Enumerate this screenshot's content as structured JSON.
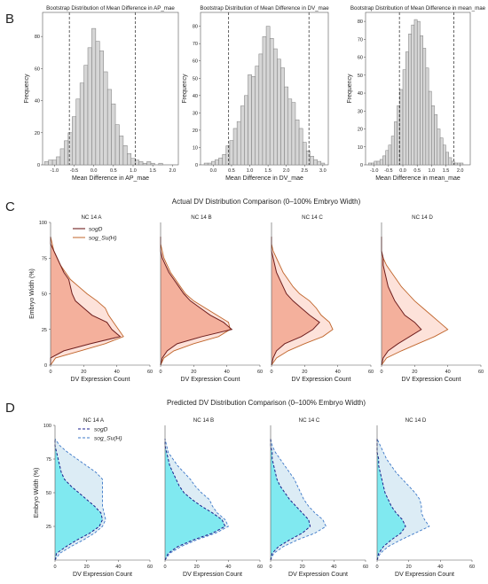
{
  "figure": {
    "panel_b": "B",
    "panel_c": "C",
    "panel_d": "D",
    "section_c_title": "Actual DV Distribution Comparison (0–100% Embryo Width)",
    "section_d_title": "Predicted DV Distribution Comparison (0–100% Embryo Width)"
  },
  "colors": {
    "hist_fill": "#d6d6d6",
    "hist_edge": "#7a7a7a",
    "actual_sogD_line": "#6e1e1e",
    "actual_sogSu_line": "#c0652b",
    "actual_sogD_fill": "#f4b09c",
    "actual_sogSu_fill": "#fde2da",
    "pred_sogD_line": "#1a1f8c",
    "pred_sogSu_line": "#3c78c8",
    "pred_sogD_fill": "#80e9f0",
    "pred_sogSu_fill": "#dcecf5"
  },
  "chart_data": [
    {
      "type": "bar",
      "title": "Bootstrap Distribution of Mean Difference in AP_mae",
      "xlabel": "Mean Difference in AP_mae",
      "ylabel": "Frequency",
      "xlim": [
        -1.3,
        2.15
      ],
      "ylim": [
        0,
        95
      ],
      "xticks": [
        -1.0,
        -0.5,
        0.0,
        0.5,
        1.0,
        1.5,
        2.0
      ],
      "xtick_labels": [
        "-1.0",
        "-0.5",
        "0.0",
        "0.5",
        "1.0",
        "1.5",
        "2.0"
      ],
      "yticks": [
        0,
        20,
        40,
        60,
        80
      ],
      "bin_start": -1.25,
      "bin_width": 0.1,
      "values": [
        2,
        3,
        3,
        5,
        10,
        15,
        20,
        30,
        41,
        51,
        62,
        73,
        85,
        77,
        71,
        58,
        47,
        38,
        25,
        18,
        12,
        7,
        4,
        3,
        2,
        1,
        2,
        1,
        0,
        1
      ],
      "ci": [
        -0.62,
        1.06
      ]
    },
    {
      "type": "bar",
      "title": "Bootstrap Distribution of Mean Difference in DV_mae",
      "xlabel": "Mean Difference in DV_mae",
      "ylabel": "Frequency",
      "xlim": [
        -0.35,
        3.15
      ],
      "ylim": [
        0,
        88
      ],
      "xticks": [
        0.0,
        0.5,
        1.0,
        1.5,
        2.0,
        2.5,
        3.0
      ],
      "xtick_labels": [
        "0.0",
        "0.5",
        "1.0",
        "1.5",
        "2.0",
        "2.5",
        "3.0"
      ],
      "yticks": [
        0,
        10,
        20,
        30,
        40,
        50,
        60,
        70,
        80
      ],
      "bin_start": -0.25,
      "bin_width": 0.1,
      "values": [
        1,
        1,
        2,
        3,
        4,
        6,
        11,
        14,
        21,
        25,
        34,
        40,
        52,
        51,
        57,
        64,
        74,
        80,
        73,
        67,
        61,
        56,
        45,
        38,
        36,
        26,
        21,
        13,
        8,
        5,
        3,
        2,
        1
      ],
      "ci": [
        0.42,
        2.62
      ]
    },
    {
      "type": "bar",
      "title": "Bootstrap Distribution of Mean Difference in mean_mae",
      "xlabel": "Mean Difference in mean_mae",
      "ylabel": "Frequency",
      "xlim": [
        -1.3,
        2.35
      ],
      "ylim": [
        0,
        85
      ],
      "xticks": [
        -1.0,
        -0.5,
        0.0,
        0.5,
        1.0,
        1.5,
        2.0
      ],
      "xtick_labels": [
        "-1.0",
        "-0.5",
        "0.0",
        "0.5",
        "1.0",
        "1.5",
        "2.0"
      ],
      "yticks": [
        0,
        10,
        20,
        30,
        40,
        50,
        60,
        70,
        80
      ],
      "bin_start": -1.2,
      "bin_width": 0.1,
      "values": [
        1,
        1,
        2,
        2,
        3,
        5,
        8,
        11,
        16,
        24,
        33,
        42,
        53,
        63,
        73,
        78,
        81,
        80,
        72,
        65,
        54,
        41,
        33,
        28,
        20,
        15,
        11,
        7,
        4,
        2,
        1,
        1,
        1,
        0,
        0
      ],
      "ci": [
        -0.12,
        1.78
      ]
    },
    {
      "type": "area",
      "group": "actual",
      "panels": [
        "NC 14 A",
        "NC 14 B",
        "NC 14 C",
        "NC 14 D"
      ],
      "xlabel": "DV Expression Count",
      "ylabel": "Embryo Width (%)",
      "xlim": [
        0,
        60
      ],
      "ylim": [
        0,
        100
      ],
      "xticks": [
        0,
        20,
        40,
        60
      ],
      "yticks": [
        0,
        25,
        50,
        75,
        100
      ],
      "legend": [
        "sogD",
        "sog_Su(H)"
      ],
      "y": [
        0,
        5,
        10,
        15,
        20,
        25,
        30,
        35,
        40,
        45,
        50,
        55,
        60,
        65,
        70,
        75,
        80,
        85,
        90
      ],
      "series": [
        {
          "name": "sogD",
          "panel": "NC 14 A",
          "values": [
            0,
            0,
            8,
            24,
            42,
            37,
            34,
            25,
            20,
            15,
            13,
            12,
            11,
            8,
            6,
            4,
            2,
            0,
            0
          ]
        },
        {
          "name": "sog_Su(H)",
          "panel": "NC 14 A",
          "values": [
            0,
            3,
            18,
            33,
            44,
            41,
            38,
            35,
            33,
            28,
            22,
            17,
            12,
            9,
            6,
            4,
            2,
            1,
            0
          ]
        },
        {
          "name": "sogD",
          "panel": "NC 14 B",
          "values": [
            0,
            1,
            4,
            10,
            25,
            43,
            38,
            30,
            24,
            18,
            14,
            11,
            8,
            5,
            3,
            1,
            0,
            0,
            0
          ]
        },
        {
          "name": "sog_Su(H)",
          "panel": "NC 14 B",
          "values": [
            0,
            2,
            8,
            20,
            35,
            42,
            41,
            34,
            27,
            20,
            15,
            12,
            9,
            6,
            4,
            2,
            1,
            0,
            0
          ]
        },
        {
          "name": "sogD",
          "panel": "NC 14 C",
          "values": [
            0,
            1,
            3,
            8,
            18,
            25,
            29,
            23,
            18,
            13,
            9,
            7,
            5,
            3,
            2,
            1,
            0,
            0,
            0
          ]
        },
        {
          "name": "sog_Su(H)",
          "panel": "NC 14 C",
          "values": [
            0,
            3,
            10,
            20,
            31,
            37,
            35,
            30,
            27,
            23,
            17,
            13,
            10,
            7,
            5,
            3,
            1,
            0,
            0
          ]
        },
        {
          "name": "sogD",
          "panel": "NC 14 D",
          "values": [
            0,
            1,
            4,
            10,
            17,
            24,
            20,
            14,
            11,
            8,
            6,
            4,
            3,
            2,
            1,
            1,
            0,
            0,
            0
          ]
        },
        {
          "name": "sog_Su(H)",
          "panel": "NC 14 D",
          "values": [
            0,
            3,
            12,
            22,
            32,
            40,
            35,
            30,
            25,
            20,
            16,
            12,
            9,
            6,
            3,
            1,
            0,
            0,
            0
          ]
        }
      ]
    },
    {
      "type": "area",
      "group": "predicted",
      "panels": [
        "NC 14 A",
        "NC 14 B",
        "NC 14 C",
        "NC 14 D"
      ],
      "xlabel": "DV Expression Count",
      "ylabel": "Embryo Width (%)",
      "xlim": [
        0,
        60
      ],
      "ylim": [
        0,
        100
      ],
      "xticks": [
        0,
        20,
        40,
        60
      ],
      "yticks": [
        25,
        50,
        75,
        100
      ],
      "legend": [
        "sogD",
        "sog_Su(H)"
      ],
      "y": [
        0,
        5,
        10,
        15,
        20,
        25,
        30,
        35,
        40,
        45,
        50,
        55,
        60,
        65,
        70,
        75,
        80,
        85,
        90
      ],
      "series": [
        {
          "name": "sogD",
          "panel": "NC 14 A",
          "values": [
            0,
            1,
            7,
            14,
            22,
            28,
            30,
            29,
            25,
            20,
            15,
            10,
            6,
            4,
            3,
            2,
            1,
            0,
            0
          ]
        },
        {
          "name": "sog_Su(H)",
          "panel": "NC 14 A",
          "values": [
            0,
            3,
            10,
            18,
            25,
            30,
            32,
            31,
            30,
            30,
            30,
            30,
            30,
            26,
            20,
            14,
            8,
            3,
            0
          ]
        },
        {
          "name": "sogD",
          "panel": "NC 14 B",
          "values": [
            0,
            2,
            8,
            18,
            30,
            38,
            36,
            30,
            23,
            17,
            12,
            9,
            7,
            5,
            3,
            2,
            1,
            0,
            0
          ]
        },
        {
          "name": "sog_Su(H)",
          "panel": "NC 14 B",
          "values": [
            0,
            3,
            10,
            20,
            32,
            40,
            38,
            33,
            30,
            28,
            23,
            19,
            16,
            12,
            8,
            5,
            2,
            1,
            0
          ]
        },
        {
          "name": "sogD",
          "panel": "NC 14 C",
          "values": [
            0,
            1,
            5,
            12,
            20,
            25,
            24,
            20,
            16,
            12,
            9,
            6,
            4,
            3,
            2,
            1,
            1,
            0,
            0
          ]
        },
        {
          "name": "sog_Su(H)",
          "panel": "NC 14 C",
          "values": [
            0,
            2,
            8,
            17,
            28,
            35,
            33,
            28,
            24,
            21,
            19,
            17,
            15,
            12,
            9,
            6,
            3,
            1,
            0
          ]
        },
        {
          "name": "sogD",
          "panel": "NC 14 D",
          "values": [
            0,
            1,
            4,
            9,
            15,
            18,
            16,
            12,
            9,
            7,
            5,
            4,
            3,
            2,
            1,
            1,
            0,
            0,
            0
          ]
        },
        {
          "name": "sog_Su(H)",
          "panel": "NC 14 D",
          "values": [
            0,
            2,
            7,
            15,
            24,
            33,
            30,
            28,
            28,
            27,
            24,
            20,
            16,
            12,
            9,
            6,
            4,
            2,
            0
          ]
        }
      ]
    }
  ]
}
